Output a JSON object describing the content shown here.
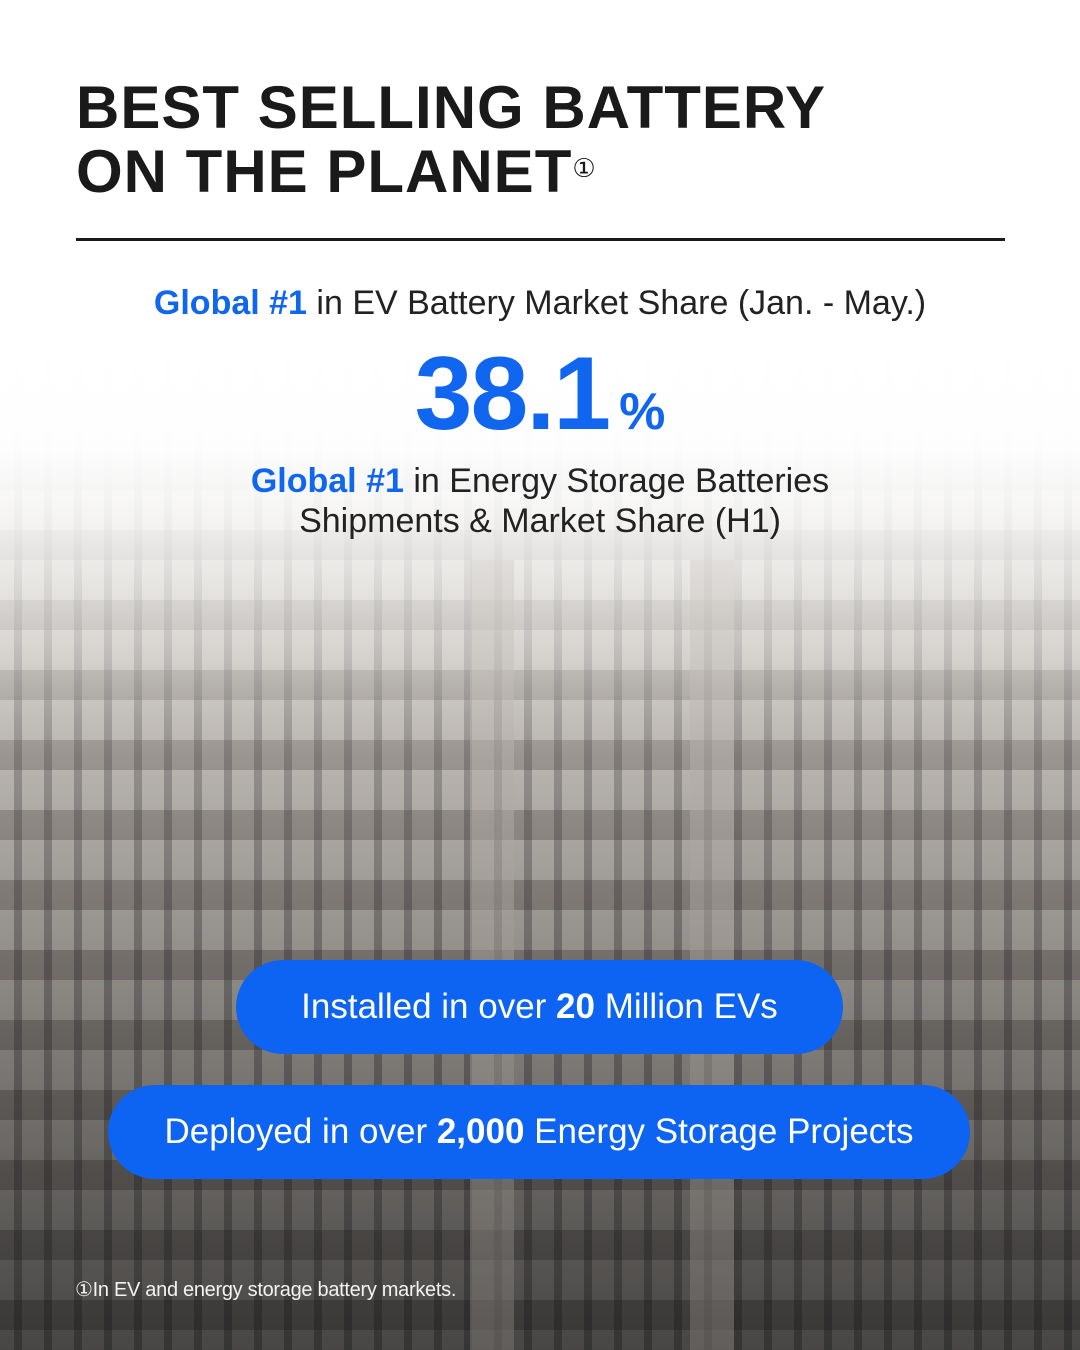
{
  "title": {
    "line1": "BEST SELLING BATTERY",
    "line2": "ON THE PLANET",
    "footnote_mark": "①"
  },
  "stat1": {
    "highlight": "Global #1",
    "text": " in EV Battery Market Share (Jan. - May.)",
    "value": "38.1",
    "unit": "%"
  },
  "stat2": {
    "highlight": "Global #1",
    "text": " in Energy Storage Batteries",
    "line2": "Shipments & Market Share (H1)"
  },
  "pill1": {
    "pre": "Installed in over ",
    "bold": "20",
    "post": " Million EVs"
  },
  "pill2": {
    "pre": "Deployed in over ",
    "bold": "2,000",
    "post": " Energy Storage Projects"
  },
  "footnote": "①In EV and energy storage battery markets.",
  "colors": {
    "accent": "#1166f0",
    "pill": "#0d63f2",
    "text": "#1a1a1a"
  }
}
